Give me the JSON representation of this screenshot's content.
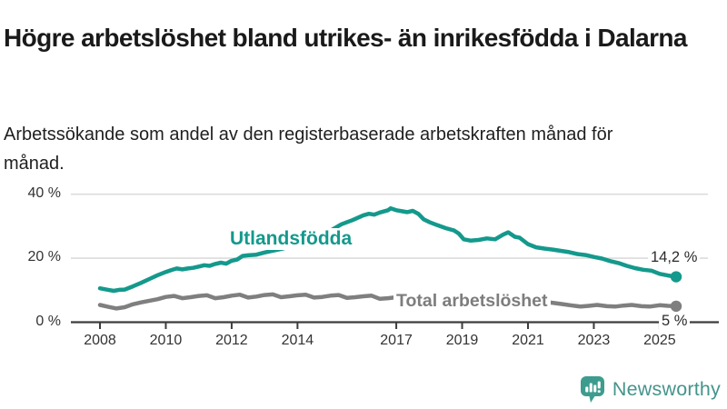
{
  "header": {
    "title": "Högre arbetslöshet bland utrikes- än inrikesfödda i Dalarna",
    "subtitle": "Arbetssökande som andel av den registerbaserade arbetskraften månad för månad."
  },
  "chart_data": {
    "type": "line",
    "unit": "%",
    "ylim": [
      0,
      40
    ],
    "grid": "horizontal",
    "colors": {
      "teal": "#14998c",
      "gray": "#7f7f7f",
      "axis": "#3c3c3c",
      "gridline": "#dcdcdc",
      "tick_text": "#333333"
    },
    "yticks": [
      {
        "value": 0,
        "label": "0 %"
      },
      {
        "value": 20,
        "label": "20 %"
      },
      {
        "value": 40,
        "label": "40 %"
      }
    ],
    "xticks": [
      {
        "year": 2008,
        "label": "2008"
      },
      {
        "year": 2010,
        "label": "2010"
      },
      {
        "year": 2012,
        "label": "2012"
      },
      {
        "year": 2014,
        "label": "2014"
      },
      {
        "year": 2017,
        "label": "2017"
      },
      {
        "year": 2019,
        "label": "2019"
      },
      {
        "year": 2021,
        "label": "2021"
      },
      {
        "year": 2023,
        "label": "2023"
      },
      {
        "year": 2025,
        "label": "2025"
      }
    ],
    "series": [
      {
        "name": "Utlandsfödda",
        "color": "#14998c",
        "end_value": 14.2,
        "end_label": "14,2 %",
        "points": [
          [
            2008.0,
            10.6
          ],
          [
            2008.25,
            10.1
          ],
          [
            2008.42,
            9.8
          ],
          [
            2008.58,
            10.1
          ],
          [
            2008.75,
            10.2
          ],
          [
            2009.0,
            11.2
          ],
          [
            2009.25,
            12.3
          ],
          [
            2009.5,
            13.5
          ],
          [
            2009.75,
            14.7
          ],
          [
            2010.0,
            15.7
          ],
          [
            2010.17,
            16.3
          ],
          [
            2010.33,
            16.8
          ],
          [
            2010.5,
            16.5
          ],
          [
            2010.67,
            16.8
          ],
          [
            2010.83,
            17.0
          ],
          [
            2011.0,
            17.4
          ],
          [
            2011.17,
            17.8
          ],
          [
            2011.33,
            17.6
          ],
          [
            2011.5,
            18.2
          ],
          [
            2011.67,
            18.6
          ],
          [
            2011.83,
            18.3
          ],
          [
            2012.0,
            19.2
          ],
          [
            2012.17,
            19.6
          ],
          [
            2012.33,
            20.7
          ],
          [
            2012.5,
            20.9
          ],
          [
            2012.75,
            21.1
          ],
          [
            2013.0,
            21.8
          ],
          [
            2013.5,
            22.9
          ],
          [
            2014.0,
            24.3
          ],
          [
            2014.5,
            25.8
          ],
          [
            2015.0,
            28.6
          ],
          [
            2015.33,
            30.6
          ],
          [
            2015.67,
            31.9
          ],
          [
            2016.0,
            33.4
          ],
          [
            2016.17,
            33.9
          ],
          [
            2016.33,
            33.6
          ],
          [
            2016.5,
            34.3
          ],
          [
            2016.75,
            35.0
          ],
          [
            2016.83,
            35.6
          ],
          [
            2017.0,
            35.0
          ],
          [
            2017.17,
            34.7
          ],
          [
            2017.33,
            34.4
          ],
          [
            2017.5,
            34.8
          ],
          [
            2017.67,
            33.9
          ],
          [
            2017.83,
            32.2
          ],
          [
            2018.0,
            31.3
          ],
          [
            2018.25,
            30.3
          ],
          [
            2018.5,
            29.4
          ],
          [
            2018.75,
            28.7
          ],
          [
            2018.9,
            27.7
          ],
          [
            2019.05,
            25.9
          ],
          [
            2019.25,
            25.5
          ],
          [
            2019.5,
            25.7
          ],
          [
            2019.75,
            26.2
          ],
          [
            2020.0,
            25.9
          ],
          [
            2020.25,
            27.4
          ],
          [
            2020.4,
            28.1
          ],
          [
            2020.6,
            26.7
          ],
          [
            2020.75,
            26.4
          ],
          [
            2021.0,
            24.4
          ],
          [
            2021.25,
            23.4
          ],
          [
            2021.5,
            23.0
          ],
          [
            2021.75,
            22.7
          ],
          [
            2022.0,
            22.3
          ],
          [
            2022.25,
            21.9
          ],
          [
            2022.5,
            21.3
          ],
          [
            2022.75,
            21.0
          ],
          [
            2023.0,
            20.4
          ],
          [
            2023.25,
            19.9
          ],
          [
            2023.5,
            19.1
          ],
          [
            2023.75,
            18.5
          ],
          [
            2024.0,
            17.6
          ],
          [
            2024.25,
            16.9
          ],
          [
            2024.5,
            16.4
          ],
          [
            2024.75,
            16.1
          ],
          [
            2025.0,
            15.1
          ],
          [
            2025.25,
            14.6
          ],
          [
            2025.5,
            14.2
          ]
        ]
      },
      {
        "name": "Total arbetslöshet",
        "color": "#7f7f7f",
        "end_value": 5,
        "end_label": "5 %",
        "points": [
          [
            2008.0,
            5.4
          ],
          [
            2008.25,
            4.8
          ],
          [
            2008.5,
            4.3
          ],
          [
            2008.75,
            4.7
          ],
          [
            2009.0,
            5.6
          ],
          [
            2009.25,
            6.2
          ],
          [
            2009.5,
            6.7
          ],
          [
            2009.75,
            7.2
          ],
          [
            2010.0,
            7.9
          ],
          [
            2010.25,
            8.2
          ],
          [
            2010.5,
            7.5
          ],
          [
            2010.75,
            7.8
          ],
          [
            2011.0,
            8.2
          ],
          [
            2011.25,
            8.4
          ],
          [
            2011.5,
            7.5
          ],
          [
            2011.75,
            7.8
          ],
          [
            2012.0,
            8.3
          ],
          [
            2012.25,
            8.6
          ],
          [
            2012.5,
            7.7
          ],
          [
            2012.75,
            8.0
          ],
          [
            2013.0,
            8.5
          ],
          [
            2013.25,
            8.7
          ],
          [
            2013.5,
            7.8
          ],
          [
            2013.75,
            8.1
          ],
          [
            2014.0,
            8.4
          ],
          [
            2014.25,
            8.6
          ],
          [
            2014.5,
            7.7
          ],
          [
            2014.75,
            7.9
          ],
          [
            2015.0,
            8.3
          ],
          [
            2015.25,
            8.5
          ],
          [
            2015.5,
            7.6
          ],
          [
            2015.75,
            7.8
          ],
          [
            2016.0,
            8.1
          ],
          [
            2016.25,
            8.3
          ],
          [
            2016.5,
            7.3
          ],
          [
            2016.75,
            7.5
          ],
          [
            2017.0,
            7.8
          ],
          [
            2017.5,
            7.2
          ],
          [
            2018.0,
            7.0
          ],
          [
            2018.5,
            6.6
          ],
          [
            2019.0,
            6.6
          ],
          [
            2019.5,
            6.2
          ],
          [
            2020.0,
            6.6
          ],
          [
            2020.4,
            7.9
          ],
          [
            2021.0,
            7.1
          ],
          [
            2021.5,
            6.4
          ],
          [
            2022.0,
            5.7
          ],
          [
            2022.35,
            5.2
          ],
          [
            2022.6,
            4.9
          ],
          [
            2022.85,
            5.1
          ],
          [
            2023.1,
            5.4
          ],
          [
            2023.4,
            5.0
          ],
          [
            2023.65,
            4.9
          ],
          [
            2023.9,
            5.2
          ],
          [
            2024.15,
            5.4
          ],
          [
            2024.45,
            5.0
          ],
          [
            2024.7,
            4.9
          ],
          [
            2025.0,
            5.3
          ],
          [
            2025.25,
            5.1
          ],
          [
            2025.5,
            5.0
          ]
        ]
      }
    ]
  },
  "footer": {
    "brand": "Newsworthy"
  }
}
